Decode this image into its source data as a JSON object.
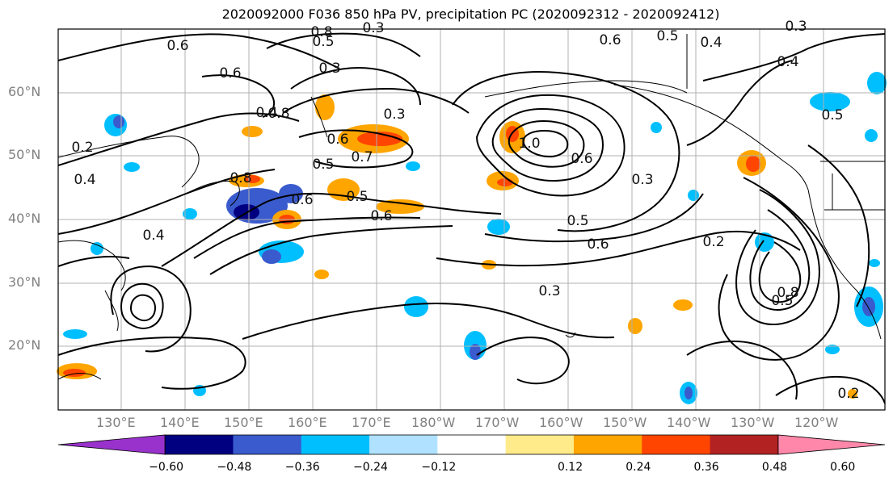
{
  "title": "2020092000 F036 850 hPa PV, precipitation PC (2020092312 - 2020092412)",
  "lat_labels": [
    "60°N",
    "50°N",
    "40°N",
    "30°N",
    "20°N"
  ],
  "lon_labels": [
    "130°E",
    "140°E",
    "150°E",
    "160°E",
    "170°E",
    "180°W",
    "170°W",
    "160°W",
    "150°W",
    "140°W",
    "130°W",
    "120°W"
  ],
  "contour_labels": [
    "0.6",
    "0.3",
    "0.8",
    "0.5",
    "0.4",
    "0.3",
    "0.6",
    "0.8",
    "0.2",
    "0.4",
    "0.3",
    "0.6",
    "0.7",
    "0.5",
    "0.5",
    "0.6",
    "0.6",
    "0.8",
    "1.0",
    "0.6",
    "0.3",
    "0.5",
    "0.6",
    "0.4",
    "0.6",
    "0.5",
    "0.4",
    "0.3",
    "0.3",
    "0.5",
    "0.2",
    "0.4",
    "0.2",
    "0.8",
    "0.5"
  ],
  "colorbar": {
    "ticks": [
      "−0.60",
      "−0.48",
      "−0.36",
      "−0.24",
      "−0.12",
      "0.12",
      "0.24",
      "0.36",
      "0.48",
      "0.60"
    ],
    "colors": [
      "#9932cc",
      "#000080",
      "#3a5bcd",
      "#00bfff",
      "#b0e2ff",
      "#ffffff",
      "#ffeb8a",
      "#ffa500",
      "#ff4500",
      "#b22222",
      "#ff88aa"
    ]
  }
}
